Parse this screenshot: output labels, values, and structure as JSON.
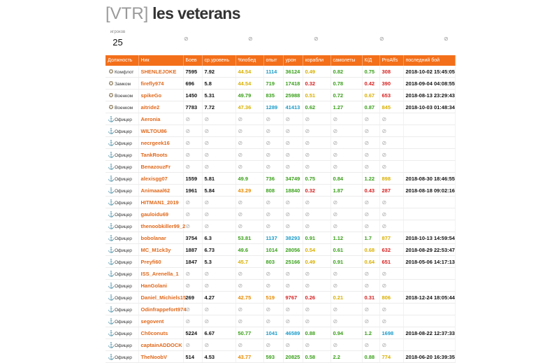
{
  "clan": {
    "tag": "[VTR]",
    "name": "les veterans"
  },
  "summary": {
    "players_label": "игроков",
    "players_count": "25",
    "no_data_icons": [
      "eye-crossed-icon",
      "eye-crossed-icon",
      "eye-crossed-icon",
      "eye-crossed-icon",
      "eye-crossed-icon"
    ]
  },
  "table": {
    "headers": [
      "Должность",
      "Ник",
      "Боев",
      "ср.уровень",
      "%побед",
      "опыт",
      "урон",
      "корабли",
      "самолеты",
      "К/Д",
      "ProAffs",
      "последний бой"
    ],
    "no_data_glyph": "⊘",
    "rows": [
      {
        "role": "Комфлот",
        "role_icon": "medal-icon",
        "nick": "SHENLEJOKE",
        "battles": "7595",
        "level": "7.92",
        "win": "44.54",
        "win_c": "yellow",
        "exp": "1114",
        "exp_c": "cyan",
        "dmg": "36124",
        "dmg_c": "green",
        "ships": "0.49",
        "ships_c": "yellow",
        "planes": "0.82",
        "planes_c": "green",
        "kd": "0.75",
        "kd_c": "green",
        "pr": "308",
        "pr_c": "red",
        "last": "2018-10-02 15:45:05"
      },
      {
        "role": "Замком",
        "role_icon": "medal-icon",
        "nick": "firefly974",
        "battles": "696",
        "level": "5.8",
        "win": "44.54",
        "win_c": "yellow",
        "exp": "719",
        "exp_c": "green",
        "dmg": "17418",
        "dmg_c": "green",
        "ships": "0.32",
        "ships_c": "red",
        "planes": "0.78",
        "planes_c": "green",
        "kd": "0.42",
        "kd_c": "red",
        "pr": "390",
        "pr_c": "red",
        "last": "2018-09-04 04:08:55"
      },
      {
        "role": "Военком",
        "role_icon": "medal-icon",
        "nick": "spikeGo",
        "battles": "1450",
        "level": "5.31",
        "win": "49.79",
        "win_c": "green",
        "exp": "835",
        "exp_c": "green",
        "dmg": "25988",
        "dmg_c": "green",
        "ships": "0.51",
        "ships_c": "yellow",
        "planes": "0.72",
        "planes_c": "green",
        "kd": "0.67",
        "kd_c": "yellow",
        "pr": "653",
        "pr_c": "red",
        "last": "2018-08-13 23:29:43"
      },
      {
        "role": "Военком",
        "role_icon": "medal-icon",
        "nick": "aitride2",
        "battles": "7783",
        "level": "7.72",
        "win": "47.36",
        "win_c": "yellow",
        "exp": "1289",
        "exp_c": "cyan",
        "dmg": "41413",
        "dmg_c": "cyan",
        "ships": "0.62",
        "ships_c": "green",
        "planes": "1.27",
        "planes_c": "green",
        "kd": "0.87",
        "kd_c": "green",
        "pr": "845",
        "pr_c": "yellow",
        "last": "2018-10-03 01:48:34"
      },
      {
        "role": "Офицер",
        "role_icon": "anchor-icon",
        "nick": "Aeronia",
        "nodata": true
      },
      {
        "role": "Офицер",
        "role_icon": "anchor-icon",
        "nick": "WILTOU86",
        "nodata": true
      },
      {
        "role": "Офицер",
        "role_icon": "anchor-icon",
        "nick": "necrgeek16",
        "nodata": true
      },
      {
        "role": "Офицер",
        "role_icon": "anchor-icon",
        "nick": "TankRoots",
        "nodata": true
      },
      {
        "role": "Офицер",
        "role_icon": "anchor-icon",
        "nick": "BenazouzFr",
        "nodata": true
      },
      {
        "role": "Офицер",
        "role_icon": "anchor-icon",
        "nick": "alexisgg07",
        "battles": "1559",
        "level": "5.81",
        "win": "49.9",
        "win_c": "green",
        "exp": "736",
        "exp_c": "green",
        "dmg": "34749",
        "dmg_c": "green",
        "ships": "0.75",
        "ships_c": "green",
        "planes": "0.84",
        "planes_c": "green",
        "kd": "1.22",
        "kd_c": "green",
        "pr": "898",
        "pr_c": "yellow",
        "last": "2018-08-30 18:46:55"
      },
      {
        "role": "Офицер",
        "role_icon": "anchor-icon",
        "nick": "Animaaal62",
        "battles": "1961",
        "level": "5.84",
        "win": "43.29",
        "win_c": "orange",
        "exp": "808",
        "exp_c": "green",
        "dmg": "18840",
        "dmg_c": "green",
        "ships": "0.32",
        "ships_c": "red",
        "planes": "1.87",
        "planes_c": "green",
        "kd": "0.43",
        "kd_c": "red",
        "pr": "287",
        "pr_c": "red",
        "last": "2018-08-18 09:02:16"
      },
      {
        "role": "Офицер",
        "role_icon": "anchor-icon",
        "nick": "HITMAN1_2019",
        "nodata": true
      },
      {
        "role": "Офицер",
        "role_icon": "anchor-icon",
        "nick": "gauloidu69",
        "nodata": true
      },
      {
        "role": "Офицер",
        "role_icon": "anchor-icon",
        "nick": "thenoobkiller99_2",
        "nodata": true
      },
      {
        "role": "Офицер",
        "role_icon": "anchor-icon",
        "nick": "bobolanar",
        "battles": "3754",
        "level": "6.3",
        "win": "53.81",
        "win_c": "green",
        "exp": "1137",
        "exp_c": "cyan",
        "dmg": "38293",
        "dmg_c": "cyan",
        "ships": "0.91",
        "ships_c": "green",
        "planes": "1.12",
        "planes_c": "green",
        "kd": "1.7",
        "kd_c": "green",
        "pr": "877",
        "pr_c": "yellow",
        "last": "2018-10-13 14:59:54"
      },
      {
        "role": "Офицер",
        "role_icon": "anchor-icon",
        "nick": "MC_M1ck3y",
        "battles": "1887",
        "level": "6.73",
        "win": "49.6",
        "win_c": "green",
        "exp": "1014",
        "exp_c": "green",
        "dmg": "28056",
        "dmg_c": "green",
        "ships": "0.54",
        "ships_c": "yellow",
        "planes": "0.61",
        "planes_c": "green",
        "kd": "0.68",
        "kd_c": "yellow",
        "pr": "632",
        "pr_c": "red",
        "last": "2018-08-29 22:53:47"
      },
      {
        "role": "Офицер",
        "role_icon": "anchor-icon",
        "nick": "Preyfi60",
        "battles": "1847",
        "level": "5.3",
        "win": "45.7",
        "win_c": "yellow",
        "exp": "803",
        "exp_c": "green",
        "dmg": "25166",
        "dmg_c": "green",
        "ships": "0.49",
        "ships_c": "yellow",
        "planes": "0.91",
        "planes_c": "green",
        "kd": "0.64",
        "kd_c": "yellow",
        "pr": "651",
        "pr_c": "red",
        "last": "2018-05-06 14:17:13"
      },
      {
        "role": "Офицер",
        "role_icon": "anchor-icon",
        "nick": "ISS_Arenella_1",
        "nodata": true
      },
      {
        "role": "Офицер",
        "role_icon": "anchor-icon",
        "nick": "HanGolani",
        "nodata": true
      },
      {
        "role": "Офицер",
        "role_icon": "anchor-icon",
        "nick": "Daniel_Michiels15",
        "battles": "269",
        "level": "4.27",
        "win": "42.75",
        "win_c": "orange",
        "exp": "519",
        "exp_c": "orange",
        "dmg": "9767",
        "dmg_c": "red",
        "ships": "0.26",
        "ships_c": "red",
        "planes": "0.21",
        "planes_c": "yellow",
        "kd": "0.31",
        "kd_c": "red",
        "pr": "806",
        "pr_c": "yellow",
        "last": "2018-12-24 18:05:44"
      },
      {
        "role": "Офицер",
        "role_icon": "anchor-icon",
        "nick": "Odinfrappefort974",
        "nodata": true
      },
      {
        "role": "Офицер",
        "role_icon": "anchor-icon",
        "nick": "segovent",
        "nodata": true
      },
      {
        "role": "Офицер",
        "role_icon": "anchor-icon",
        "nick": "Ch0conuts",
        "battles": "5224",
        "level": "6.67",
        "win": "50.77",
        "win_c": "green",
        "exp": "1041",
        "exp_c": "cyan",
        "dmg": "46589",
        "dmg_c": "cyan",
        "ships": "0.88",
        "ships_c": "green",
        "planes": "0.94",
        "planes_c": "green",
        "kd": "1.2",
        "kd_c": "green",
        "pr": "1698",
        "pr_c": "cyan",
        "last": "2018-08-22 12:37:33"
      },
      {
        "role": "Офицер",
        "role_icon": "anchor-icon",
        "nick": "captainADDOCK",
        "nodata": true
      },
      {
        "role": "Офицер",
        "role_icon": "anchor-icon",
        "nick": "TheNoobV",
        "battles": "514",
        "level": "4.53",
        "win": "43.77",
        "win_c": "orange",
        "exp": "593",
        "exp_c": "green",
        "dmg": "20825",
        "dmg_c": "green",
        "ships": "0.58",
        "ships_c": "green",
        "planes": "2.2",
        "planes_c": "green",
        "kd": "0.88",
        "kd_c": "green",
        "pr": "774",
        "pr_c": "yellow",
        "last": "2018-06-20 16:39:35"
      }
    ]
  }
}
